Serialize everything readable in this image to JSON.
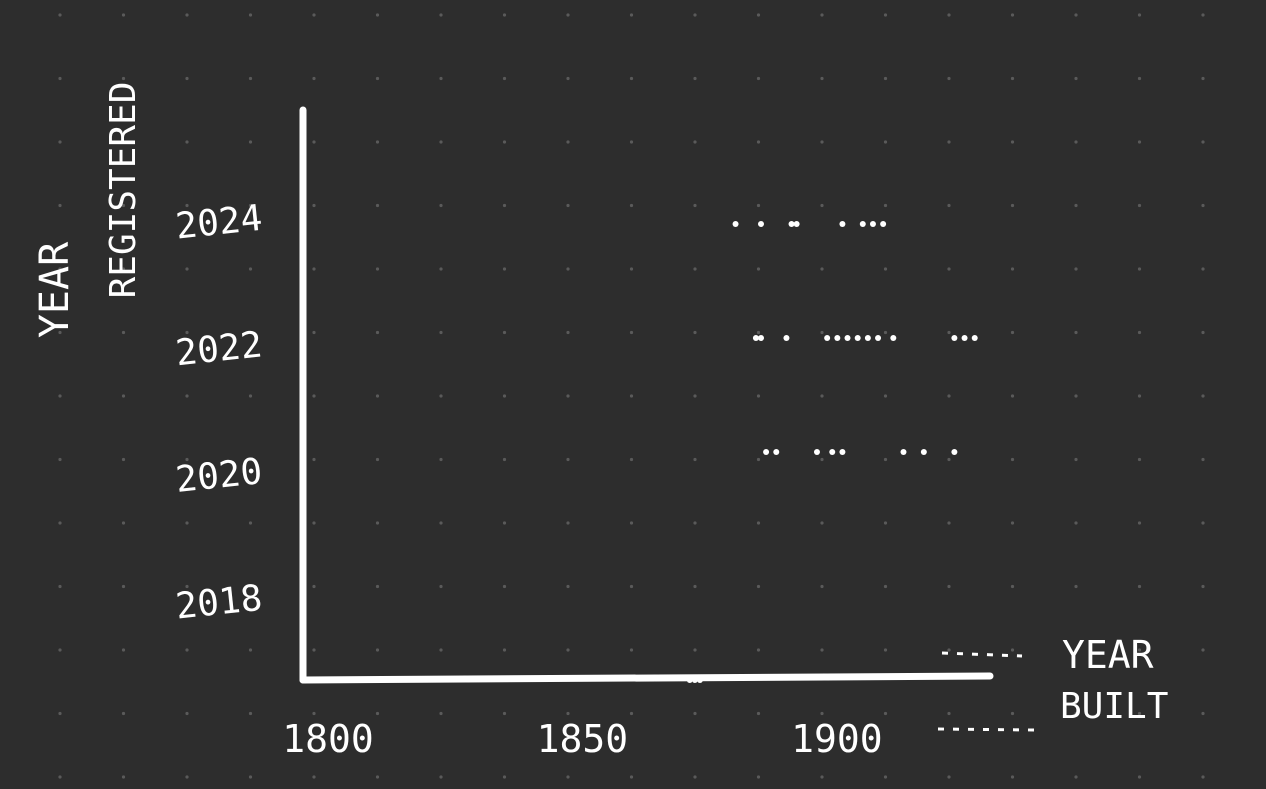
{
  "colors": {
    "background": "#2d2d2d",
    "grid_dot": "#5a5a5a",
    "ink": "#ffffff"
  },
  "chart_data": {
    "type": "scatter",
    "title": "",
    "xlabel": "YEAR BUILT",
    "ylabel": "YEAR REGISTERED",
    "x_ticks": [
      "1800",
      "1850",
      "1900"
    ],
    "y_ticks": [
      "2018",
      "2020",
      "2022",
      "2024"
    ],
    "xlim": [
      1800,
      1935
    ],
    "ylim": [
      2016.7,
      2025.7
    ],
    "grid": false,
    "background_dot_grid": true,
    "points": [
      {
        "x": 1801,
        "y": 2016.7
      },
      {
        "x": 1804,
        "y": 2016.7
      },
      {
        "x": 1876,
        "y": 2016.7
      },
      {
        "x": 1877,
        "y": 2016.7
      },
      {
        "x": 1878,
        "y": 2016.7
      },
      {
        "x": 1891,
        "y": 2020.3
      },
      {
        "x": 1893,
        "y": 2020.3
      },
      {
        "x": 1901,
        "y": 2020.3
      },
      {
        "x": 1904,
        "y": 2020.3
      },
      {
        "x": 1906,
        "y": 2020.3
      },
      {
        "x": 1918,
        "y": 2020.3
      },
      {
        "x": 1922,
        "y": 2020.3
      },
      {
        "x": 1928,
        "y": 2020.3
      },
      {
        "x": 1889,
        "y": 2022.1
      },
      {
        "x": 1890,
        "y": 2022.1
      },
      {
        "x": 1895,
        "y": 2022.1
      },
      {
        "x": 1903,
        "y": 2022.1
      },
      {
        "x": 1905,
        "y": 2022.1
      },
      {
        "x": 1907,
        "y": 2022.1
      },
      {
        "x": 1909,
        "y": 2022.1
      },
      {
        "x": 1911,
        "y": 2022.1
      },
      {
        "x": 1913,
        "y": 2022.1
      },
      {
        "x": 1916,
        "y": 2022.1
      },
      {
        "x": 1928,
        "y": 2022.1
      },
      {
        "x": 1930,
        "y": 2022.1
      },
      {
        "x": 1932,
        "y": 2022.1
      },
      {
        "x": 1885,
        "y": 2023.9
      },
      {
        "x": 1890,
        "y": 2023.9
      },
      {
        "x": 1896,
        "y": 2023.9
      },
      {
        "x": 1897,
        "y": 2023.9
      },
      {
        "x": 1906,
        "y": 2023.9
      },
      {
        "x": 1910,
        "y": 2023.9
      },
      {
        "x": 1912,
        "y": 2023.9
      },
      {
        "x": 1914,
        "y": 2023.9
      }
    ],
    "legend": [
      {
        "style": "dotted-short",
        "label": "YEAR"
      },
      {
        "style": "dotted-long",
        "label": "BUILT"
      }
    ]
  }
}
